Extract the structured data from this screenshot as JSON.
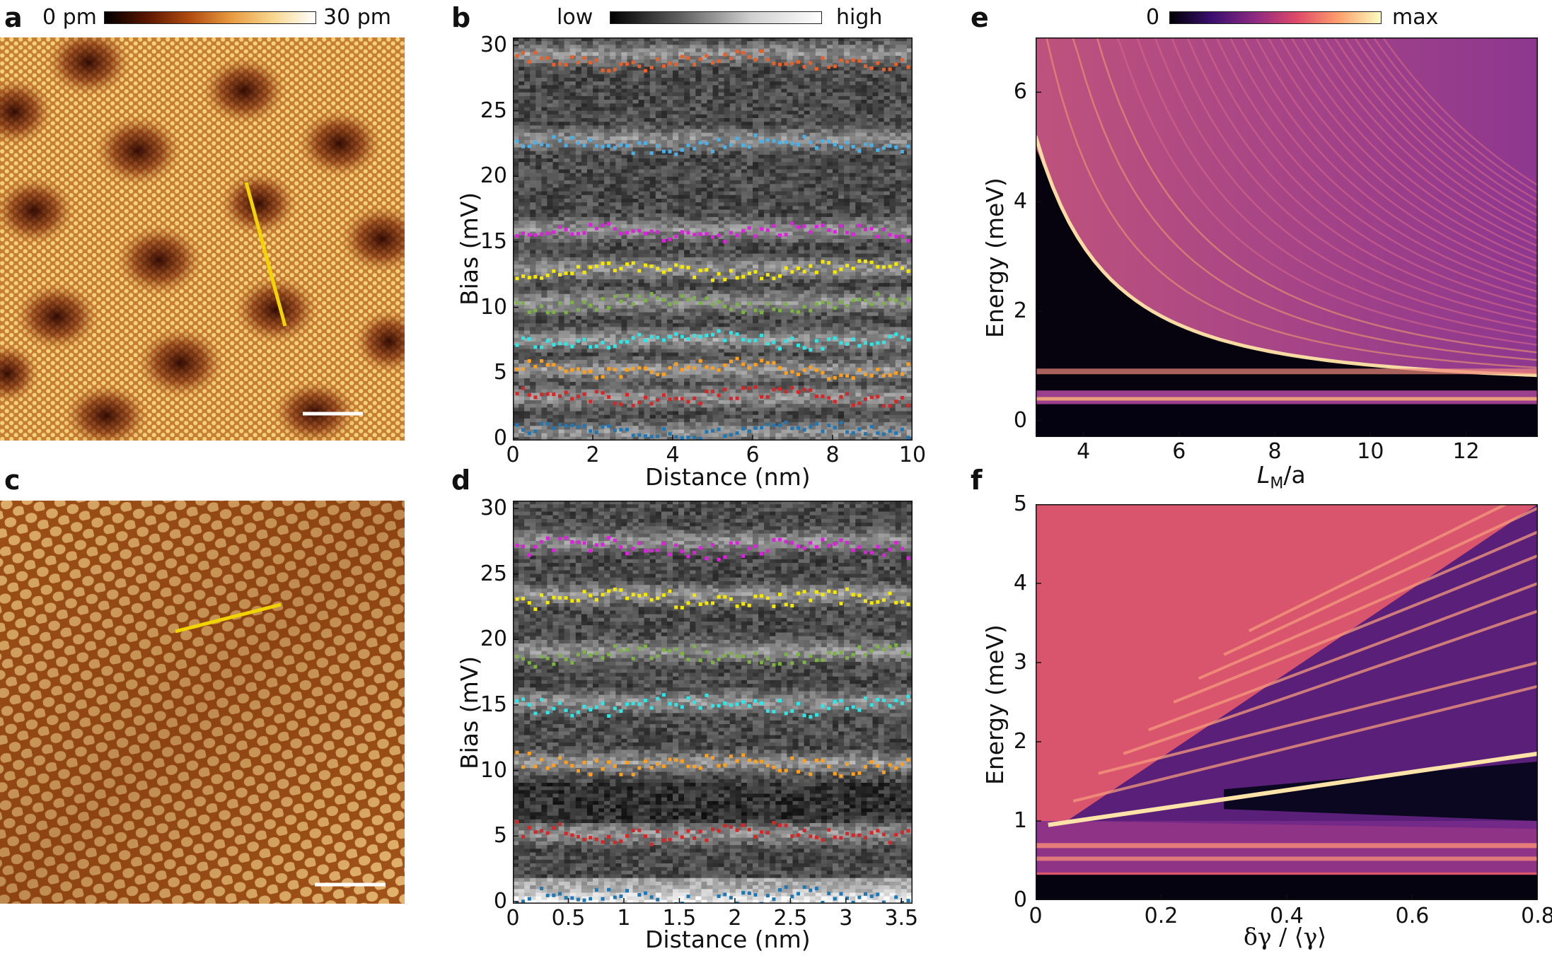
{
  "panels": {
    "a": {
      "label": "a",
      "colorbar": {
        "min": "0 pm",
        "max": "30 pm"
      }
    },
    "b": {
      "label": "b",
      "colorbar": {
        "min": "low",
        "max": "high"
      },
      "xlabel": "Distance (nm)",
      "ylabel": "Bias (mV)",
      "xticks": [
        "0",
        "2",
        "4",
        "6",
        "8",
        "10"
      ],
      "yticks": [
        "0",
        "5",
        "10",
        "15",
        "20",
        "25",
        "30"
      ]
    },
    "c": {
      "label": "c"
    },
    "d": {
      "label": "d",
      "xlabel": "Distance (nm)",
      "ylabel": "Bias (mV)",
      "xticks": [
        "0",
        "0.5",
        "1",
        "1.5",
        "2",
        "2.5",
        "3",
        "3.5"
      ],
      "yticks": [
        "0",
        "5",
        "10",
        "15",
        "20",
        "25",
        "30"
      ]
    },
    "e": {
      "label": "e",
      "colorbar": {
        "min": "0",
        "max": "max"
      },
      "xlabel_main": "L",
      "xlabel_sub": "M",
      "xlabel_tail": "/a",
      "ylabel": "Energy (meV)",
      "xticks": [
        "4",
        "6",
        "8",
        "10",
        "12"
      ],
      "yticks": [
        "0",
        "2",
        "4",
        "6"
      ]
    },
    "f": {
      "label": "f",
      "xlabel": "δγ / ⟨γ⟩",
      "ylabel": "Energy (meV)",
      "xticks": [
        "0",
        "0.2",
        "0.4",
        "0.6",
        "0.8"
      ],
      "yticks": [
        "0",
        "1",
        "2",
        "3",
        "4",
        "5"
      ]
    }
  },
  "chart_data": [
    {
      "panel": "b",
      "type": "scatter",
      "xlim": [
        0,
        10
      ],
      "ylim": [
        0,
        30
      ],
      "series": [
        {
          "color": "#1f77b4",
          "y": 0.6
        },
        {
          "color": "#d62728",
          "y": 3.2
        },
        {
          "color": "#ff9f1c",
          "y": 5.3
        },
        {
          "color": "#2ee6e6",
          "y": 7.5
        },
        {
          "color": "#7cb342",
          "y": 10.3
        },
        {
          "color": "#f5e900",
          "y": 12.8
        },
        {
          "color": "#e020e0",
          "y": 15.7
        },
        {
          "color": "#4ab0e8",
          "y": 22.4
        },
        {
          "color": "#e8602a",
          "y": 28.8
        }
      ]
    },
    {
      "panel": "d",
      "type": "scatter",
      "xlim": [
        0,
        3.6
      ],
      "ylim": [
        0,
        30
      ],
      "series": [
        {
          "color": "#1f77b4",
          "y": 0.2
        },
        {
          "color": "#d62728",
          "y": 5.2
        },
        {
          "color": "#ff9f1c",
          "y": 10.5
        },
        {
          "color": "#2ee6e6",
          "y": 15.0
        },
        {
          "color": "#7cb342",
          "y": 18.8
        },
        {
          "color": "#f5e900",
          "y": 23.0
        },
        {
          "color": "#e020e0",
          "y": 27.0
        }
      ]
    },
    {
      "panel": "e",
      "type": "heatmap",
      "xlim": [
        3,
        13.5
      ],
      "ylim": [
        -0.3,
        7
      ]
    },
    {
      "panel": "f",
      "type": "heatmap",
      "xlim": [
        0,
        0.8
      ],
      "ylim": [
        0,
        5
      ]
    }
  ]
}
